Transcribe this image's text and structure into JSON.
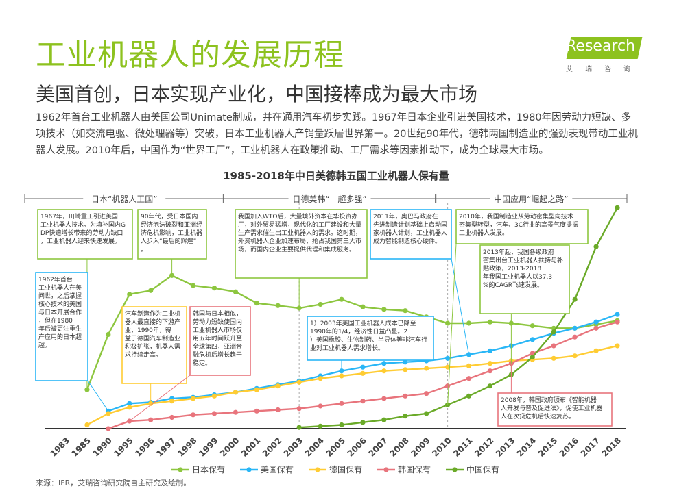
{
  "header": {
    "title": "工业机器人的发展历程",
    "subtitle": "美国首创，日本实现产业化，中国接棒成为最大市场",
    "intro": "1962年首台工业机器人由美国公司Unimate制成，并在通用汽车初步实践。1967年日本企业引进美国技术，1980年因劳动力短缺、多项技术（如交流电驱、微处理器等）突破，日本工业机器人产销量跃居世界第一。20世纪90年代，德韩两国制造业的强劲表现带动工业机器人发展。2010年后，中国作为“世界工厂”，工业机器人在政策推动、工厂需求等因素推动下，成为全球最大市场。"
  },
  "logo": {
    "brand": "iResearch",
    "sub": "艾瑞咨询"
  },
  "source": "来源：IFR，艾瑞咨询研究院自主研究及绘制。",
  "colors": {
    "japan": "#8dc63f",
    "usa": "#29b6f6",
    "germany": "#ffcc33",
    "korea": "#e8747c",
    "china": "#6aaa28",
    "title_green": "#8dc21f"
  },
  "chart_data": {
    "type": "line",
    "title": "1985-2018年中日美德韩五国工业机器人保有量",
    "x": [
      "1983",
      "1985",
      "1990",
      "1995",
      "1996",
      "1997",
      "1998",
      "1999",
      "2000",
      "2001",
      "2002",
      "2003",
      "2004",
      "2005",
      "2006",
      "2007",
      "2008",
      "2009",
      "2010",
      "2011",
      "2012",
      "2013",
      "2014",
      "2015",
      "2016",
      "2017",
      "2018"
    ],
    "series": [
      {
        "name": "日本保有",
        "color": "#8dc63f",
        "values": [
          null,
          0.31,
          0.75,
          1.07,
          1.1,
          1.22,
          1.14,
          1.12,
          1.09,
          1.0,
          0.98,
          0.96,
          0.99,
          1.03,
          0.97,
          0.95,
          0.94,
          0.89,
          0.84,
          0.84,
          0.85,
          0.84,
          0.82,
          0.8,
          0.8,
          0.83,
          0.86
        ]
      },
      {
        "name": "美国保有",
        "color": "#29b6f6",
        "values": [
          null,
          null,
          0.14,
          0.2,
          0.21,
          0.24,
          0.25,
          0.27,
          0.29,
          0.32,
          0.35,
          0.38,
          0.42,
          0.46,
          0.49,
          0.52,
          0.53,
          0.54,
          0.56,
          0.59,
          0.62,
          0.66,
          0.71,
          0.76,
          0.8,
          0.85,
          0.91
        ]
      },
      {
        "name": "德国保有",
        "color": "#ffcc33",
        "values": [
          null,
          0.03,
          0.12,
          0.17,
          0.2,
          0.22,
          0.24,
          0.26,
          0.29,
          0.31,
          0.34,
          0.37,
          0.4,
          0.42,
          0.44,
          0.46,
          0.47,
          0.48,
          0.49,
          0.5,
          0.52,
          0.54,
          0.55,
          0.56,
          0.58,
          0.62,
          0.66
        ]
      },
      {
        "name": "韩国保有",
        "color": "#e8747c",
        "values": [
          null,
          null,
          0.0,
          0.06,
          0.07,
          0.09,
          0.11,
          0.12,
          0.13,
          0.14,
          0.15,
          0.16,
          0.18,
          0.2,
          0.22,
          0.24,
          0.26,
          0.28,
          0.34,
          0.4,
          0.46,
          0.52,
          0.6,
          0.66,
          0.73,
          0.8,
          0.85
        ]
      },
      {
        "name": "中国保有",
        "color": "#6aaa28",
        "values": [
          null,
          null,
          null,
          null,
          null,
          null,
          null,
          null,
          null,
          null,
          null,
          0.01,
          0.02,
          0.03,
          0.05,
          0.07,
          0.1,
          0.12,
          0.19,
          0.26,
          0.34,
          0.43,
          0.57,
          0.77,
          1.03,
          1.45,
          1.76
        ]
      }
    ],
    "ylim": [
      0,
      1.8
    ],
    "periods": [
      {
        "label": "日本“机器人王国”",
        "from": "1983",
        "to": "1999"
      },
      {
        "label": "日德美韩“一超多强”",
        "from": "2000",
        "to": "2009"
      },
      {
        "label": "中国应用“崛起之路”",
        "from": "2010",
        "to": "2018"
      }
    ],
    "annotations": [
      {
        "text": "1967年，川崎重工引进美国工业机器人技术。为填补国内GDP快速增长带来的劳动力缺口，工业机器人迎来快速发展。",
        "border": "#8dc63f"
      },
      {
        "text": "90年代，受日本国内经济泡沫破裂和亚洲经济危机影响，工业机器人步入“最后的辉煌”。",
        "border": "#8dc63f"
      },
      {
        "text": "我国加入WTO后，大量境外资本在华投资办厂，对外贸易猛增，现代化的工厂建设和大量生产需求催生出工业机器人的需求。这时期，外资机器人企业加速布局，抢占我国第三大市场，而国内企业主要提供代理和集成服务。",
        "border": "#8dc63f"
      },
      {
        "text": "2011年，奥巴马政府在先进制造计划基础上启动国家机器人计划，工业机器人成为智能制造核心硬件。",
        "border": "#29b6f6"
      },
      {
        "text": "2010年，我国制造业从劳动密集型向技术密集型转型，汽车、3C行业的高景气度提振工业机器人发展。",
        "border": "#8dc63f"
      },
      {
        "text": "1962年首台工业机器人在美问世，之后掌握核心技术的美国与日本开展合作，但在1980年后被更注重生产应用的日本超越。",
        "border": "#29b6f6"
      },
      {
        "text": "汽车制造作为工业机器人最直接的下游产业，1990年，得益于德国汽车制造业积极扩张，机器人需求持续走高。",
        "border": "#ffcc33"
      },
      {
        "text": "韩国与日本相似，劳动力短缺使国内工业机器人市场仅用五年时间跃升至全球第四，亚洲金融危机后增长趋于稳定。",
        "border": "#e8747c"
      },
      {
        "text": "1）2003年美国工业机器人成本已降至1990年的1/4，经济性日益凸显。2）美国橡胶、生物制药、半导体等非汽车行业对工业机器人需求增长。",
        "border": "#29b6f6"
      },
      {
        "text": "2013年起，我国各级政府密集出台工业机器人扶持与补贴政策，2013-2018年我国工业机器人以37.3%的CAGR飞速发展。",
        "border": "#8dc63f"
      },
      {
        "text": "2008年，韩国政府颁布《智能机器人开发与普及促进法》，促使工业机器人在次贷危机后快速复苏。",
        "border": "#e8747c"
      }
    ]
  }
}
